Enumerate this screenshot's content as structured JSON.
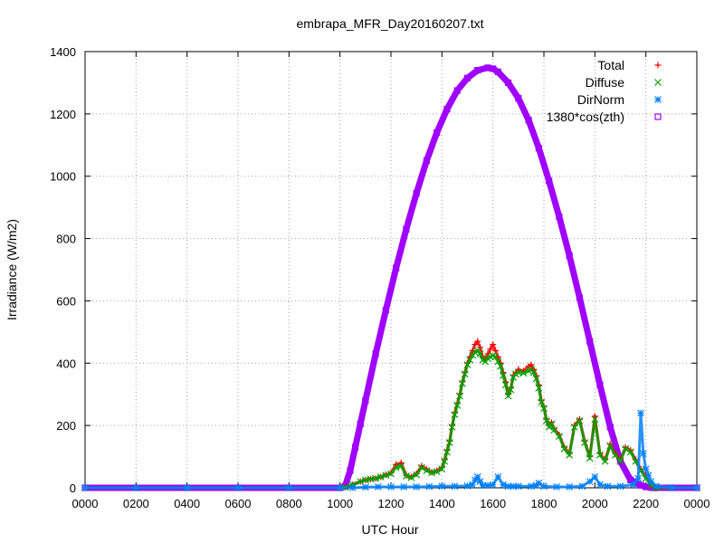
{
  "chart_data": {
    "type": "scatter",
    "title": "embrapa_MFR_Day20160207.txt",
    "xlabel": "UTC Hour",
    "ylabel": "Irradiance (W/m2)",
    "xlim": [
      0,
      24
    ],
    "ylim": [
      0,
      1400
    ],
    "x_tick_values": [
      0,
      2,
      4,
      6,
      8,
      10,
      12,
      14,
      16,
      18,
      20,
      22,
      24
    ],
    "x_tick_labels": [
      "0000",
      "0200",
      "0400",
      "0600",
      "0800",
      "1000",
      "1200",
      "1400",
      "1600",
      "1800",
      "2000",
      "2200",
      "0000"
    ],
    "y_ticks": [
      0,
      200,
      400,
      600,
      800,
      1000,
      1200,
      1400
    ],
    "grid": true,
    "legend_position": "top-right",
    "series": [
      {
        "name": "Total",
        "color": "#ff0000",
        "marker": "plus",
        "x": [
          0,
          2,
          4,
          6,
          8,
          10,
          10.2,
          10.5,
          10.8,
          11.0,
          11.2,
          11.4,
          11.6,
          11.8,
          12.0,
          12.2,
          12.4,
          12.6,
          12.8,
          13.0,
          13.2,
          13.4,
          13.6,
          13.8,
          14.0,
          14.1,
          14.2,
          14.3,
          14.4,
          14.5,
          14.6,
          14.7,
          14.8,
          14.9,
          15.0,
          15.1,
          15.2,
          15.3,
          15.4,
          15.5,
          15.6,
          15.7,
          15.8,
          15.9,
          16.0,
          16.1,
          16.2,
          16.3,
          16.4,
          16.5,
          16.6,
          16.7,
          16.8,
          16.9,
          17.0,
          17.2,
          17.4,
          17.5,
          17.6,
          17.7,
          17.8,
          17.9,
          18.0,
          18.1,
          18.2,
          18.3,
          18.4,
          18.6,
          18.8,
          19.0,
          19.2,
          19.4,
          19.6,
          19.8,
          20.0,
          20.2,
          20.4,
          20.6,
          20.8,
          21.0,
          21.2,
          21.4,
          21.6,
          21.8,
          22.0,
          22.2,
          22.4,
          23,
          24
        ],
        "y": [
          0,
          0,
          0,
          0,
          0,
          0,
          2,
          10,
          20,
          25,
          28,
          30,
          35,
          42,
          48,
          75,
          80,
          40,
          35,
          45,
          70,
          60,
          50,
          55,
          65,
          90,
          120,
          150,
          200,
          240,
          270,
          300,
          340,
          370,
          400,
          420,
          440,
          460,
          470,
          450,
          420,
          415,
          430,
          445,
          460,
          440,
          420,
          400,
          370,
          340,
          300,
          320,
          360,
          370,
          380,
          375,
          390,
          395,
          380,
          360,
          330,
          280,
          260,
          220,
          200,
          210,
          190,
          170,
          130,
          110,
          200,
          220,
          150,
          100,
          230,
          110,
          90,
          140,
          110,
          90,
          130,
          120,
          90,
          60,
          40,
          10,
          0,
          0,
          0
        ]
      },
      {
        "name": "Diffuse",
        "color": "#00a000",
        "marker": "cross",
        "x": [
          0,
          2,
          4,
          6,
          8,
          10,
          10.2,
          10.5,
          10.8,
          11.0,
          11.2,
          11.4,
          11.6,
          11.8,
          12.0,
          12.2,
          12.4,
          12.6,
          12.8,
          13.0,
          13.2,
          13.4,
          13.6,
          13.8,
          14.0,
          14.1,
          14.2,
          14.3,
          14.4,
          14.5,
          14.6,
          14.7,
          14.8,
          14.9,
          15.0,
          15.1,
          15.2,
          15.3,
          15.4,
          15.5,
          15.6,
          15.7,
          15.8,
          15.9,
          16.0,
          16.1,
          16.2,
          16.3,
          16.4,
          16.5,
          16.6,
          16.7,
          16.8,
          16.9,
          17.0,
          17.2,
          17.4,
          17.5,
          17.6,
          17.7,
          17.8,
          17.9,
          18.0,
          18.1,
          18.2,
          18.3,
          18.4,
          18.6,
          18.8,
          19.0,
          19.2,
          19.4,
          19.6,
          19.8,
          20.0,
          20.2,
          20.4,
          20.6,
          20.8,
          21.0,
          21.2,
          21.4,
          21.6,
          21.8,
          22.0,
          22.2,
          22.4,
          23,
          24
        ],
        "y": [
          0,
          0,
          0,
          0,
          0,
          0,
          2,
          10,
          20,
          25,
          28,
          30,
          35,
          40,
          45,
          65,
          70,
          38,
          33,
          42,
          65,
          55,
          48,
          52,
          60,
          85,
          115,
          145,
          195,
          235,
          265,
          295,
          335,
          365,
          395,
          410,
          425,
          435,
          440,
          430,
          410,
          405,
          415,
          420,
          425,
          420,
          405,
          390,
          360,
          330,
          295,
          315,
          355,
          365,
          370,
          368,
          375,
          380,
          370,
          350,
          320,
          275,
          255,
          215,
          195,
          205,
          185,
          165,
          125,
          105,
          195,
          215,
          145,
          95,
          220,
          105,
          85,
          135,
          105,
          85,
          125,
          115,
          85,
          55,
          30,
          8,
          0,
          0,
          0
        ]
      },
      {
        "name": "DirNorm",
        "color": "#0080ff",
        "marker": "star",
        "x": [
          0,
          2,
          4,
          6,
          8,
          10,
          10.5,
          11.0,
          11.5,
          12.0,
          12.5,
          13.0,
          13.5,
          14.0,
          14.5,
          15.0,
          15.2,
          15.3,
          15.4,
          15.5,
          15.6,
          15.8,
          16.0,
          16.2,
          16.4,
          16.6,
          16.8,
          17.0,
          17.5,
          17.7,
          17.8,
          18.0,
          18.5,
          19.0,
          19.5,
          19.8,
          20.0,
          20.2,
          20.5,
          21.0,
          21.5,
          21.7,
          21.8,
          21.9,
          22.0,
          22.1,
          22.2,
          22.4,
          23,
          24
        ],
        "y": [
          0,
          0,
          0,
          0,
          0,
          0,
          0,
          2,
          3,
          3,
          3,
          3,
          4,
          5,
          5,
          6,
          10,
          25,
          35,
          20,
          8,
          8,
          10,
          35,
          10,
          5,
          5,
          5,
          5,
          8,
          15,
          5,
          3,
          3,
          5,
          20,
          35,
          10,
          5,
          5,
          10,
          30,
          240,
          110,
          60,
          40,
          20,
          5,
          0,
          0
        ]
      },
      {
        "name": "1380*cos(zth)",
        "color": "#a000ff",
        "marker": "square",
        "x": [
          0,
          2,
          4,
          6,
          8,
          10,
          10.2,
          10.4,
          10.6,
          10.8,
          11.0,
          11.4,
          11.8,
          12.2,
          12.6,
          13.0,
          13.4,
          13.8,
          14.2,
          14.6,
          15.0,
          15.4,
          15.8,
          16.0,
          16.2,
          16.6,
          17.0,
          17.4,
          17.8,
          18.2,
          18.6,
          19.0,
          19.4,
          19.8,
          20.2,
          20.6,
          21.0,
          21.4,
          21.8,
          22.0,
          22.2,
          22.3,
          22.4,
          23,
          24
        ],
        "y": [
          0,
          0,
          0,
          0,
          0,
          0,
          5,
          55,
          130,
          205,
          280,
          430,
          570,
          705,
          830,
          945,
          1050,
          1140,
          1215,
          1275,
          1315,
          1340,
          1348,
          1345,
          1335,
          1300,
          1250,
          1180,
          1090,
          985,
          870,
          745,
          610,
          470,
          330,
          195,
          85,
          25,
          8,
          3,
          1,
          0,
          0,
          0,
          0
        ]
      }
    ]
  }
}
